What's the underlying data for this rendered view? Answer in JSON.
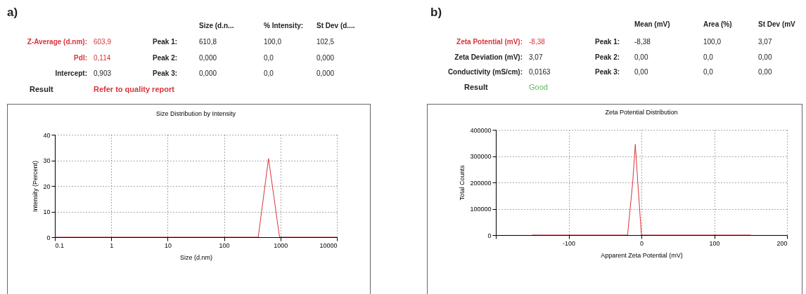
{
  "chart_data": [
    {
      "type": "other",
      "title": "a)",
      "annotations": [
        "Size (d.n...",
        "% Intensity:",
        "St Dev (d....",
        "Z-Average (d.nm):",
        "603,9",
        "Peak 1:",
        "610,8",
        "100,0",
        "102,5",
        "PdI:",
        "0,114",
        "Peak 2:",
        "0,000",
        "0,0",
        "0,000",
        "Intercept:",
        "0,903",
        "Peak 3:",
        "0,000",
        "0,0",
        "0,000",
        "Result",
        "Refer to quality report"
      ]
    },
    {
      "type": "line",
      "title": "Size Distribution by Intensity",
      "xlabel": "Size (d.nm)",
      "ylabel": "Intensity (Percent)",
      "log": "x",
      "xlim": [
        0.1,
        10000
      ],
      "xticks": [
        0.1,
        1,
        10,
        100,
        1000,
        10000
      ],
      "ylim": [
        0,
        40
      ],
      "yticks": [
        0,
        10,
        20,
        30,
        40
      ],
      "grid": true,
      "series": [
        {
          "color": "#d9343a",
          "x": [
            0.1,
            403,
            614,
            963,
            10000
          ],
          "values": [
            0,
            0,
            30.7,
            0,
            0
          ]
        }
      ]
    },
    {
      "type": "other",
      "title": "b)",
      "annotations": [
        "Mean (mV)",
        "Area (%)",
        "St Dev (mV",
        "Zeta Potential (mV):",
        "-8,38",
        "Peak 1:",
        "-8,38",
        "100,0",
        "3,07",
        "Zeta Deviation (mV):",
        "3,07",
        "Peak 2:",
        "0,00",
        "0,0",
        "0,00",
        "Conductivity (mS/cm):",
        "0,0163",
        "Peak 3:",
        "0,00",
        "0,0",
        "0,00",
        "Result",
        "Good"
      ]
    },
    {
      "type": "line",
      "title": "Zeta Potential Distribution",
      "xlabel": "Apparent Zeta Potential (mV)",
      "ylabel": "Total Counts",
      "xlim": [
        -200,
        200
      ],
      "xticks": [
        {
          "value": -200,
          "label": null
        },
        -100,
        0,
        100,
        200
      ],
      "ylim": [
        0,
        400000
      ],
      "yticks": [
        0,
        100000,
        200000,
        300000,
        400000
      ],
      "grid": true,
      "series": [
        {
          "color": "#d9343a",
          "x": [
            -150,
            -19,
            -12,
            -8.4,
            -5,
            0,
            150
          ],
          "values": [
            0,
            0,
            200000,
            345000,
            200000,
            0,
            0
          ]
        }
      ]
    }
  ]
}
